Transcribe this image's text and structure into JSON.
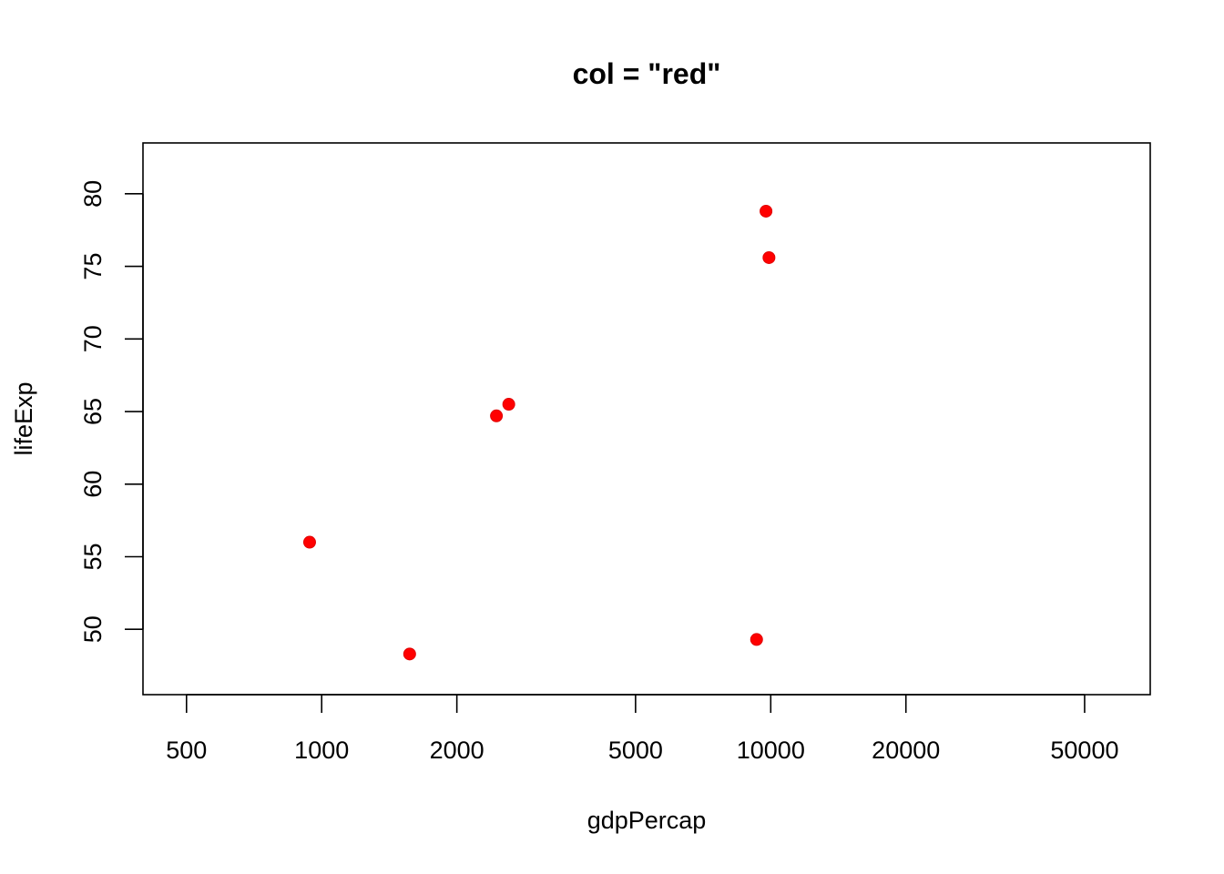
{
  "chart_data": {
    "type": "scatter",
    "title": "col = \"red\"",
    "xlabel": "gdpPercap",
    "ylabel": "lifeExp",
    "x_scale": "log",
    "xlim": [
      400,
      70000
    ],
    "ylim": [
      45.5,
      83.5
    ],
    "x_ticks": [
      500,
      1000,
      2000,
      5000,
      10000,
      20000,
      50000
    ],
    "x_tick_labels": [
      "500",
      "1000",
      "2000",
      "5000",
      "10000",
      "20000",
      "50000"
    ],
    "y_ticks": [
      50,
      55,
      60,
      65,
      70,
      75,
      80
    ],
    "y_tick_labels": [
      "50",
      "55",
      "60",
      "65",
      "70",
      "75",
      "80"
    ],
    "grid": false,
    "legend": "none",
    "point_color": "#ff0000",
    "points": [
      {
        "x": 940,
        "y": 56.0
      },
      {
        "x": 1570,
        "y": 48.3
      },
      {
        "x": 2450,
        "y": 64.7
      },
      {
        "x": 2610,
        "y": 65.5
      },
      {
        "x": 9300,
        "y": 49.3
      },
      {
        "x": 9760,
        "y": 78.8
      },
      {
        "x": 9910,
        "y": 75.6
      }
    ]
  }
}
